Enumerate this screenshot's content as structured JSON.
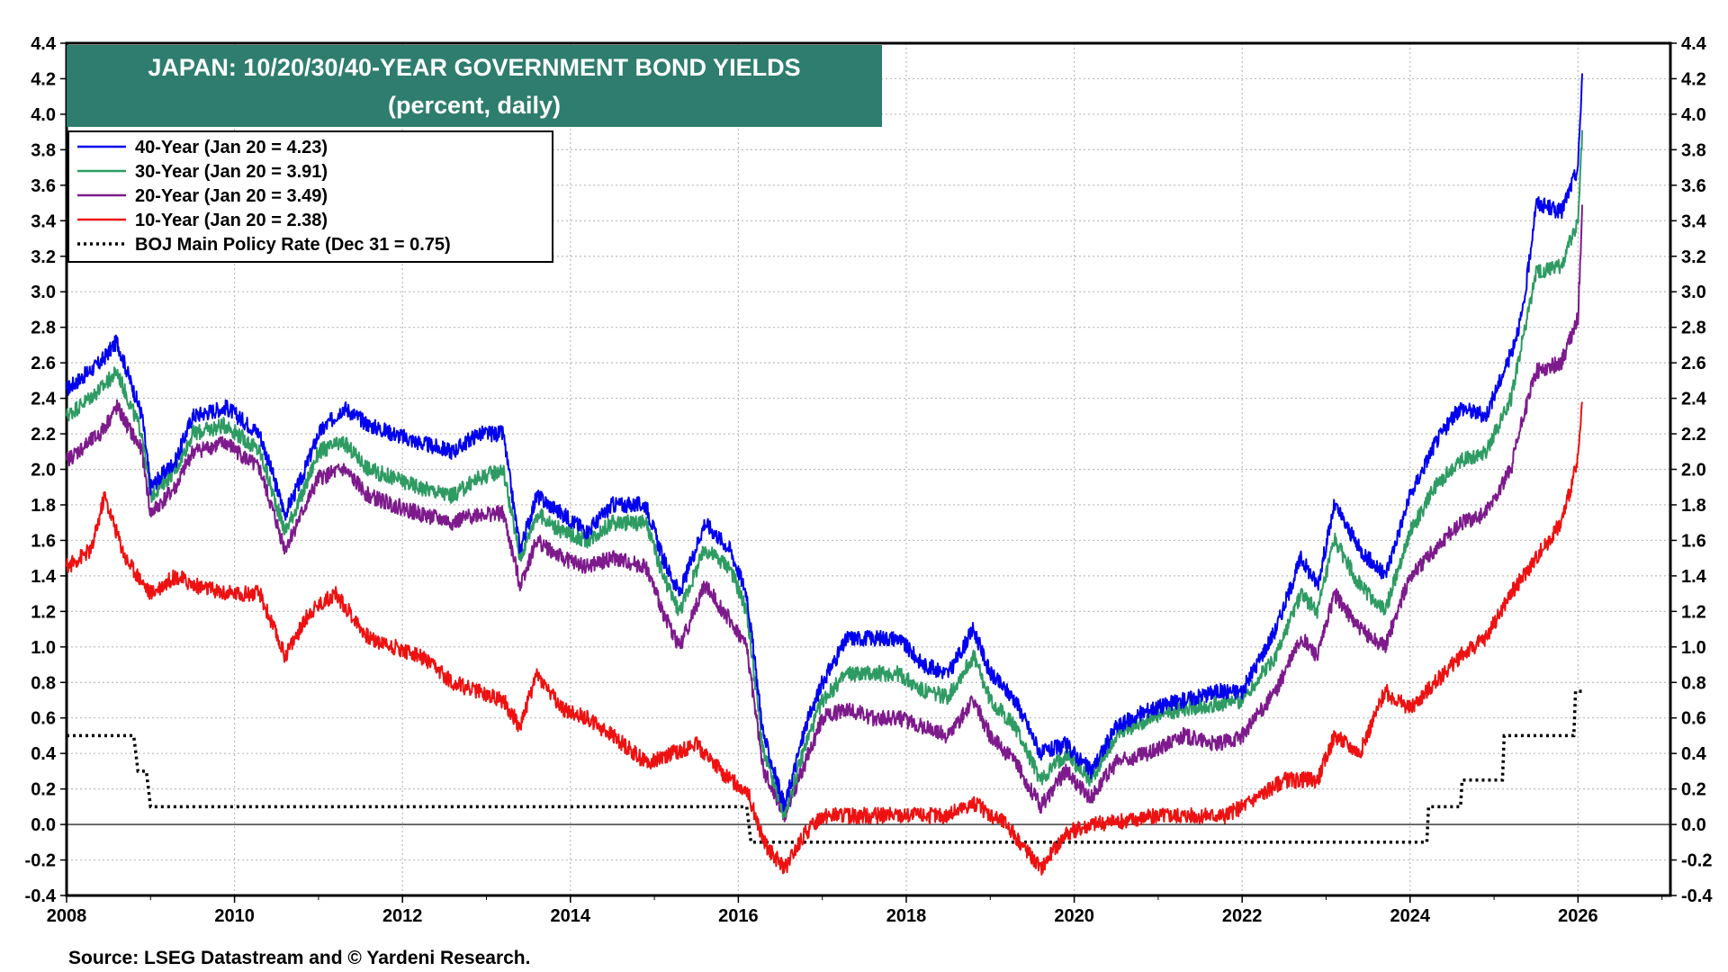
{
  "chart_data": {
    "type": "line",
    "title": "JAPAN: 10/20/30/40-YEAR GOVERNMENT BOND YIELDS",
    "subtitle": "(percent, daily)",
    "xlabel": "",
    "ylabel": "",
    "xlim": [
      2008,
      2027.1
    ],
    "ylim": [
      -0.4,
      4.4
    ],
    "x_ticks": [
      "2008",
      "2010",
      "2012",
      "2014",
      "2016",
      "2018",
      "2020",
      "2022",
      "2024",
      "2026"
    ],
    "y_ticks": [
      "-0.4",
      "-0.2",
      "0.0",
      "0.2",
      "0.4",
      "0.6",
      "0.8",
      "1.0",
      "1.2",
      "1.4",
      "1.6",
      "1.8",
      "2.0",
      "2.2",
      "2.4",
      "2.6",
      "2.8",
      "3.0",
      "3.2",
      "3.4",
      "3.6",
      "3.8",
      "4.0",
      "4.2",
      "4.4"
    ],
    "grid": true,
    "legend_position": "top-left",
    "source": "Source: LSEG Datastream and © Yardeni Research.",
    "series": [
      {
        "name": "40-Year (Jan 20 = 4.23)",
        "color": "#0000ee",
        "style": "solid",
        "x": [
          2008.0,
          2008.4,
          2008.6,
          2008.9,
          2009.0,
          2009.3,
          2009.5,
          2009.9,
          2010.3,
          2010.6,
          2010.8,
          2011.0,
          2011.3,
          2011.6,
          2011.9,
          2012.2,
          2012.6,
          2012.9,
          2013.2,
          2013.4,
          2013.6,
          2013.9,
          2014.2,
          2014.5,
          2014.9,
          2015.1,
          2015.3,
          2015.6,
          2015.9,
          2016.1,
          2016.3,
          2016.55,
          2016.8,
          2017.0,
          2017.3,
          2017.6,
          2017.9,
          2018.2,
          2018.5,
          2018.8,
          2019.0,
          2019.3,
          2019.6,
          2019.9,
          2020.2,
          2020.5,
          2020.9,
          2021.3,
          2021.7,
          2022.0,
          2022.4,
          2022.7,
          2022.9,
          2023.1,
          2023.4,
          2023.7,
          2024.0,
          2024.3,
          2024.6,
          2024.9,
          2025.2,
          2025.35,
          2025.5,
          2025.8,
          2026.0,
          2026.05
        ],
        "values": [
          2.45,
          2.6,
          2.72,
          2.3,
          1.9,
          2.05,
          2.3,
          2.35,
          2.2,
          1.75,
          1.95,
          2.2,
          2.35,
          2.25,
          2.2,
          2.15,
          2.1,
          2.2,
          2.2,
          1.55,
          1.85,
          1.75,
          1.65,
          1.8,
          1.8,
          1.5,
          1.3,
          1.7,
          1.55,
          1.3,
          0.5,
          0.1,
          0.55,
          0.8,
          1.05,
          1.05,
          1.05,
          0.9,
          0.85,
          1.1,
          0.85,
          0.7,
          0.4,
          0.45,
          0.3,
          0.55,
          0.65,
          0.7,
          0.75,
          0.75,
          1.1,
          1.5,
          1.35,
          1.8,
          1.55,
          1.4,
          1.85,
          2.15,
          2.35,
          2.3,
          2.65,
          2.9,
          3.5,
          3.45,
          3.7,
          4.23
        ]
      },
      {
        "name": "30-Year (Jan 20 = 3.91)",
        "color": "#2e9b63",
        "style": "solid",
        "x": [
          2008.0,
          2008.4,
          2008.6,
          2008.9,
          2009.0,
          2009.3,
          2009.5,
          2009.9,
          2010.3,
          2010.6,
          2010.8,
          2011.0,
          2011.3,
          2011.6,
          2011.9,
          2012.2,
          2012.6,
          2012.9,
          2013.2,
          2013.4,
          2013.6,
          2013.9,
          2014.2,
          2014.5,
          2014.9,
          2015.1,
          2015.3,
          2015.6,
          2015.9,
          2016.1,
          2016.3,
          2016.55,
          2016.8,
          2017.0,
          2017.3,
          2017.6,
          2017.9,
          2018.2,
          2018.5,
          2018.8,
          2019.0,
          2019.3,
          2019.6,
          2019.9,
          2020.2,
          2020.5,
          2020.9,
          2021.3,
          2021.7,
          2022.0,
          2022.4,
          2022.7,
          2022.9,
          2023.1,
          2023.4,
          2023.7,
          2024.0,
          2024.3,
          2024.6,
          2024.9,
          2025.2,
          2025.35,
          2025.5,
          2025.8,
          2026.0,
          2026.05
        ],
        "values": [
          2.3,
          2.45,
          2.55,
          2.2,
          1.85,
          2.0,
          2.2,
          2.25,
          2.1,
          1.65,
          1.85,
          2.1,
          2.15,
          2.0,
          1.95,
          1.9,
          1.85,
          1.95,
          2.0,
          1.5,
          1.75,
          1.65,
          1.6,
          1.7,
          1.7,
          1.4,
          1.2,
          1.55,
          1.45,
          1.2,
          0.4,
          0.05,
          0.45,
          0.7,
          0.85,
          0.85,
          0.85,
          0.75,
          0.72,
          0.95,
          0.7,
          0.55,
          0.25,
          0.4,
          0.25,
          0.5,
          0.6,
          0.65,
          0.68,
          0.7,
          0.95,
          1.3,
          1.2,
          1.6,
          1.35,
          1.2,
          1.65,
          1.9,
          2.05,
          2.1,
          2.4,
          2.75,
          3.1,
          3.15,
          3.4,
          3.91
        ]
      },
      {
        "name": "20-Year (Jan 20 = 3.49)",
        "color": "#7d1a8c",
        "style": "solid",
        "x": [
          2008.0,
          2008.4,
          2008.6,
          2008.9,
          2009.0,
          2009.3,
          2009.5,
          2009.9,
          2010.3,
          2010.6,
          2010.8,
          2011.0,
          2011.3,
          2011.6,
          2011.9,
          2012.2,
          2012.6,
          2012.9,
          2013.2,
          2013.4,
          2013.6,
          2013.9,
          2014.2,
          2014.5,
          2014.9,
          2015.1,
          2015.3,
          2015.6,
          2015.9,
          2016.1,
          2016.3,
          2016.55,
          2016.8,
          2017.0,
          2017.3,
          2017.6,
          2017.9,
          2018.2,
          2018.5,
          2018.8,
          2019.0,
          2019.3,
          2019.6,
          2019.9,
          2020.2,
          2020.5,
          2020.9,
          2021.3,
          2021.7,
          2022.0,
          2022.4,
          2022.7,
          2022.9,
          2023.1,
          2023.4,
          2023.7,
          2024.0,
          2024.3,
          2024.6,
          2024.9,
          2025.2,
          2025.35,
          2025.5,
          2025.8,
          2026.0,
          2026.05
        ],
        "values": [
          2.05,
          2.2,
          2.35,
          2.1,
          1.75,
          1.9,
          2.1,
          2.15,
          2.0,
          1.55,
          1.75,
          1.95,
          2.0,
          1.85,
          1.8,
          1.75,
          1.7,
          1.75,
          1.75,
          1.35,
          1.6,
          1.5,
          1.45,
          1.5,
          1.45,
          1.2,
          1.0,
          1.35,
          1.15,
          1.0,
          0.3,
          0.05,
          0.35,
          0.6,
          0.65,
          0.6,
          0.6,
          0.55,
          0.5,
          0.7,
          0.5,
          0.35,
          0.1,
          0.3,
          0.15,
          0.35,
          0.4,
          0.5,
          0.45,
          0.5,
          0.75,
          1.05,
          0.95,
          1.3,
          1.1,
          1.0,
          1.4,
          1.55,
          1.7,
          1.75,
          2.0,
          2.3,
          2.55,
          2.6,
          2.85,
          3.49
        ]
      },
      {
        "name": "10-Year (Jan 20 = 2.38)",
        "color": "#ee1111",
        "style": "solid",
        "x": [
          2008.0,
          2008.3,
          2008.45,
          2008.7,
          2009.0,
          2009.3,
          2009.5,
          2009.9,
          2010.3,
          2010.6,
          2010.9,
          2011.2,
          2011.6,
          2011.9,
          2012.2,
          2012.6,
          2012.9,
          2013.2,
          2013.4,
          2013.6,
          2013.9,
          2014.2,
          2014.5,
          2014.9,
          2015.2,
          2015.5,
          2015.9,
          2016.1,
          2016.3,
          2016.55,
          2016.8,
          2017.0,
          2017.5,
          2018.0,
          2018.5,
          2018.8,
          2019.2,
          2019.6,
          2019.9,
          2020.2,
          2020.6,
          2021.0,
          2021.5,
          2021.8,
          2022.0,
          2022.5,
          2022.9,
          2023.1,
          2023.4,
          2023.7,
          2024.0,
          2024.3,
          2024.6,
          2024.9,
          2025.2,
          2025.5,
          2025.8,
          2026.0,
          2026.05
        ],
        "values": [
          1.45,
          1.55,
          1.85,
          1.5,
          1.3,
          1.4,
          1.35,
          1.3,
          1.3,
          0.95,
          1.2,
          1.3,
          1.05,
          1.0,
          0.95,
          0.8,
          0.75,
          0.7,
          0.55,
          0.85,
          0.65,
          0.6,
          0.5,
          0.35,
          0.4,
          0.45,
          0.25,
          0.2,
          -0.1,
          -0.25,
          -0.05,
          0.05,
          0.05,
          0.05,
          0.05,
          0.12,
          0.0,
          -0.25,
          -0.05,
          0.0,
          0.02,
          0.05,
          0.05,
          0.05,
          0.1,
          0.25,
          0.25,
          0.5,
          0.4,
          0.75,
          0.65,
          0.8,
          0.95,
          1.05,
          1.3,
          1.5,
          1.7,
          2.05,
          2.38
        ]
      },
      {
        "name": "BOJ Main Policy Rate (Dec 31 = 0.75)",
        "color": "#000000",
        "style": "dotted",
        "x": [
          2008.0,
          2008.8,
          2008.85,
          2008.95,
          2009.0,
          2016.1,
          2016.15,
          2024.2,
          2024.22,
          2024.6,
          2024.62,
          2025.1,
          2025.12,
          2025.95,
          2025.97,
          2026.05
        ],
        "values": [
          0.5,
          0.5,
          0.3,
          0.3,
          0.1,
          0.1,
          -0.1,
          -0.1,
          0.1,
          0.1,
          0.25,
          0.25,
          0.5,
          0.5,
          0.75,
          0.75
        ]
      }
    ]
  }
}
